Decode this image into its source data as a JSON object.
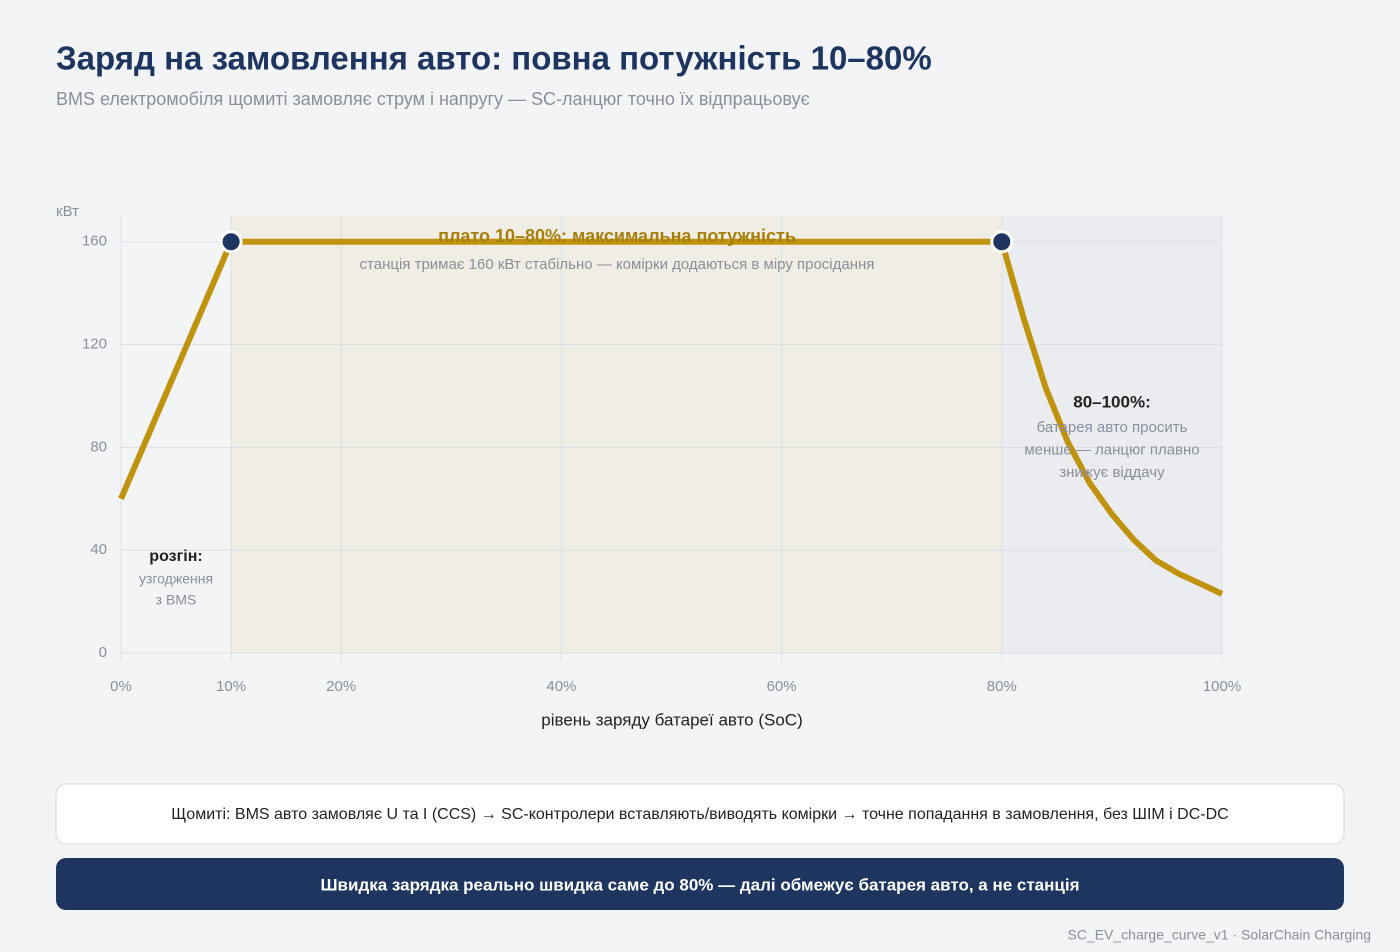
{
  "chart_data": {
    "type": "line",
    "title": "Заряд на замовлення авто: повна потужність 10–80%",
    "subtitle": "BMS електромобіля щомиті замовляє струм і напругу — SC-ланцюг точно їх відпрацьовує",
    "y_label": "кВт",
    "x_label": "рівень заряду батареї авто (SoC)",
    "x": [
      0,
      10,
      80,
      82,
      84,
      86,
      88,
      90,
      92,
      94,
      96,
      98,
      100
    ],
    "values": [
      60,
      160,
      160,
      130,
      103,
      82,
      66,
      54,
      44,
      36,
      31,
      27,
      23
    ],
    "color": "#c0930f",
    "markers": [
      {
        "x": 10,
        "y": 160
      },
      {
        "x": 80,
        "y": 160
      }
    ],
    "marker_color": "#1e3560",
    "shaded_regions": [
      {
        "from": 10,
        "to": 80,
        "color": "#f0ede4"
      },
      {
        "from": 80,
        "to": 100,
        "color": "#ebecef"
      }
    ],
    "xlim": [
      0,
      100
    ],
    "xticks": [
      {
        "value": 0,
        "label": "0%"
      },
      {
        "value": 10,
        "label": "10%"
      },
      {
        "value": 20,
        "label": "20%"
      },
      {
        "value": 40,
        "label": "40%"
      },
      {
        "value": 60,
        "label": "60%"
      },
      {
        "value": 80,
        "label": "80%"
      },
      {
        "value": 100,
        "label": "100%"
      }
    ],
    "ylim": [
      0,
      170
    ],
    "yticks": [
      0,
      40,
      80,
      120,
      160
    ],
    "grid": true,
    "annotations": [
      {
        "title": "плато 10–80%: максимальна потужність",
        "lines": [
          "станція тримає 160 кВт стабільно — комірки додаються в міру просідання"
        ]
      },
      {
        "title": "80–100%:",
        "lines": [
          "батарея авто просить",
          "менше — ланцюг плавно",
          "знижує віддачу"
        ]
      },
      {
        "title": "розгін:",
        "lines": [
          "узгодження",
          "з BMS"
        ]
      }
    ]
  },
  "note": "Щомиті: BMS авто замовляє U та I (CCS) → SC-контролери вставляють/виводять комірки → точне попадання в замовлення, без ШІМ і DC-DC",
  "conclusion": "Швидка зарядка реально швидка саме до 80% — далі обмежує батарея авто, а не станція",
  "footer": "SC_EV_charge_curve_v1 · SolarChain Charging"
}
